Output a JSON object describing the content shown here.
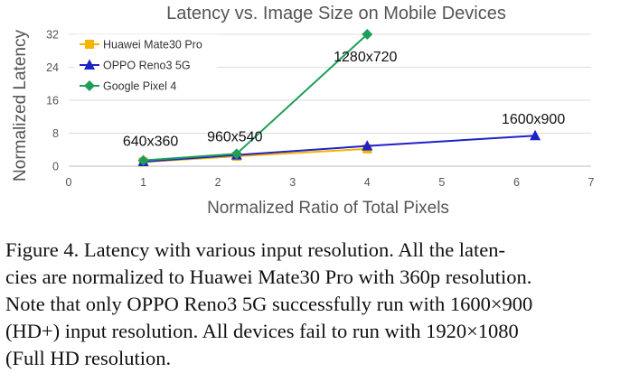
{
  "chart_data": {
    "type": "line",
    "title": "Latency vs. Image Size on Mobile Devices",
    "xlabel": "Normalized Ratio of Total Pixels",
    "ylabel": "Normalized Latency",
    "xlim": [
      0,
      7
    ],
    "ylim": [
      0,
      32
    ],
    "xticks": [
      0,
      1,
      2,
      3,
      4,
      5,
      6,
      7
    ],
    "yticks": [
      0,
      8,
      16,
      24,
      32
    ],
    "grid": "horizontal",
    "legend_position": "top-left",
    "series": [
      {
        "name": "Huawei Mate30 Pro",
        "color": "#f5b400",
        "marker": "square",
        "points": [
          {
            "x": 1,
            "y": 1
          },
          {
            "x": 2.25,
            "y": 2.4
          },
          {
            "x": 4,
            "y": 4.2
          }
        ]
      },
      {
        "name": "OPPO Reno3 5G",
        "color": "#1f22c8",
        "marker": "triangle",
        "points": [
          {
            "x": 1,
            "y": 1.1
          },
          {
            "x": 2.25,
            "y": 2.7
          },
          {
            "x": 4,
            "y": 4.9
          },
          {
            "x": 6.25,
            "y": 7.4
          }
        ]
      },
      {
        "name": "Google Pixel 4",
        "color": "#1f9e5a",
        "marker": "diamond",
        "points": [
          {
            "x": 1,
            "y": 1.4
          },
          {
            "x": 2.25,
            "y": 3
          },
          {
            "x": 4,
            "y": 32
          }
        ]
      }
    ],
    "annotations": [
      {
        "text": "640x360",
        "x": 1,
        "y": 1.4
      },
      {
        "text": "960x540",
        "x": 2.25,
        "y": 3
      },
      {
        "text": "1280x720",
        "x": 4,
        "y": 32
      },
      {
        "text": "1600x900",
        "x": 6.25,
        "y": 7.4
      }
    ]
  },
  "caption": {
    "line1": "Figure 4. Latency with various input resolution.  All the laten-",
    "line2": "cies are normalized to Huawei Mate30 Pro with 360p resolution.",
    "line3": "Note that only OPPO Reno3 5G successfully run with 1600×900",
    "line4": "(HD+) input resolution.  All devices fail to run with 1920×1080",
    "line5": "(Full HD resolution."
  }
}
